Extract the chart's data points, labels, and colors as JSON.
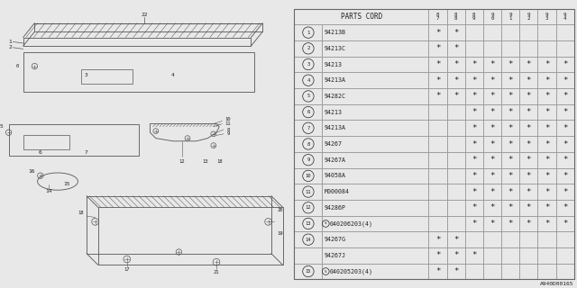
{
  "bg_color": "#e8e8e8",
  "draw_color": "#555555",
  "table_bg": "#f0f0f0",
  "text_color": "#222222",
  "header_years": [
    "8\n7",
    "8\n8",
    "8\n9",
    "9\n0",
    "9\n1",
    "9\n2",
    "9\n3",
    "9\n4"
  ],
  "rows": [
    {
      "num": "1",
      "part": "94213B",
      "s_prefix": false,
      "marks": [
        1,
        1,
        0,
        0,
        0,
        0,
        0,
        0
      ]
    },
    {
      "num": "2",
      "part": "94213C",
      "s_prefix": false,
      "marks": [
        1,
        1,
        0,
        0,
        0,
        0,
        0,
        0
      ]
    },
    {
      "num": "3",
      "part": "94213",
      "s_prefix": false,
      "marks": [
        1,
        1,
        1,
        1,
        1,
        1,
        1,
        1
      ]
    },
    {
      "num": "4",
      "part": "94213A",
      "s_prefix": false,
      "marks": [
        1,
        1,
        1,
        1,
        1,
        1,
        1,
        1
      ]
    },
    {
      "num": "5",
      "part": "94282C",
      "s_prefix": false,
      "marks": [
        1,
        1,
        1,
        1,
        1,
        1,
        1,
        1
      ]
    },
    {
      "num": "6",
      "part": "94213",
      "s_prefix": false,
      "marks": [
        0,
        0,
        1,
        1,
        1,
        1,
        1,
        1
      ]
    },
    {
      "num": "7",
      "part": "94213A",
      "s_prefix": false,
      "marks": [
        0,
        0,
        1,
        1,
        1,
        1,
        1,
        1
      ]
    },
    {
      "num": "8",
      "part": "94267",
      "s_prefix": false,
      "marks": [
        0,
        0,
        1,
        1,
        1,
        1,
        1,
        1
      ]
    },
    {
      "num": "9",
      "part": "94267A",
      "s_prefix": false,
      "marks": [
        0,
        0,
        1,
        1,
        1,
        1,
        1,
        1
      ]
    },
    {
      "num": "10",
      "part": "94058A",
      "s_prefix": false,
      "marks": [
        0,
        0,
        1,
        1,
        1,
        1,
        1,
        1
      ]
    },
    {
      "num": "11",
      "part": "M000084",
      "s_prefix": false,
      "marks": [
        0,
        0,
        1,
        1,
        1,
        1,
        1,
        1
      ]
    },
    {
      "num": "12",
      "part": "94286P",
      "s_prefix": false,
      "marks": [
        0,
        0,
        1,
        1,
        1,
        1,
        1,
        1
      ]
    },
    {
      "num": "13",
      "part": "040206203(4)",
      "s_prefix": true,
      "marks": [
        0,
        0,
        1,
        1,
        1,
        1,
        1,
        1
      ]
    },
    {
      "num": "14",
      "part": "94267G",
      "s_prefix": false,
      "marks": [
        1,
        1,
        0,
        0,
        0,
        0,
        0,
        0
      ],
      "sub_part": "94267J",
      "sub_s": false,
      "sub_marks": [
        1,
        1,
        1,
        0,
        0,
        0,
        0,
        0
      ]
    },
    {
      "num": "15",
      "part": "040205203(4)",
      "s_prefix": true,
      "marks": [
        1,
        1,
        0,
        0,
        0,
        0,
        0,
        0
      ]
    }
  ],
  "footer": "A940D00165"
}
